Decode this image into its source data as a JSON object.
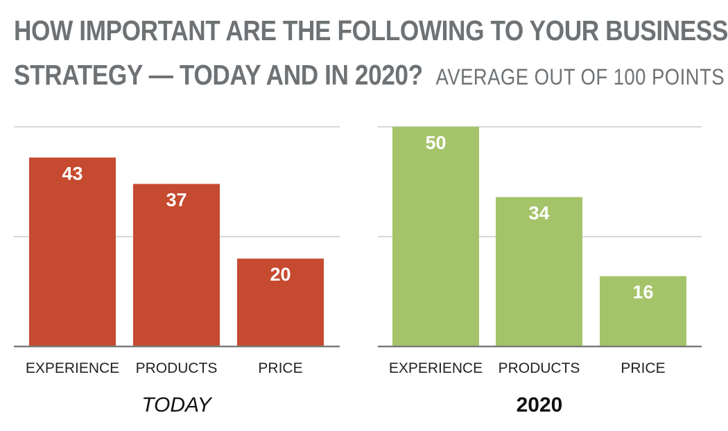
{
  "title": {
    "line1": "HOW IMPORTANT ARE THE FOLLOWING TO YOUR BUSINESS",
    "line2": "STRATEGY — TODAY AND IN 2020?",
    "subtitle": "AVERAGE OUT OF 100 POINTS"
  },
  "chart_data": [
    {
      "type": "bar",
      "label": "TODAY",
      "label_style": "italic",
      "color": "#c64a2f",
      "categories": [
        "EXPERIENCE",
        "PRODUCTS",
        "PRICE"
      ],
      "values": [
        43,
        37,
        20
      ],
      "ylim": [
        0,
        50
      ],
      "grid": true
    },
    {
      "type": "bar",
      "label": "2020",
      "label_style": "bold",
      "color": "#a5c46a",
      "categories": [
        "EXPERIENCE",
        "PRODUCTS",
        "PRICE"
      ],
      "values": [
        50,
        34,
        16
      ],
      "ylim": [
        0,
        50
      ],
      "grid": true
    }
  ]
}
